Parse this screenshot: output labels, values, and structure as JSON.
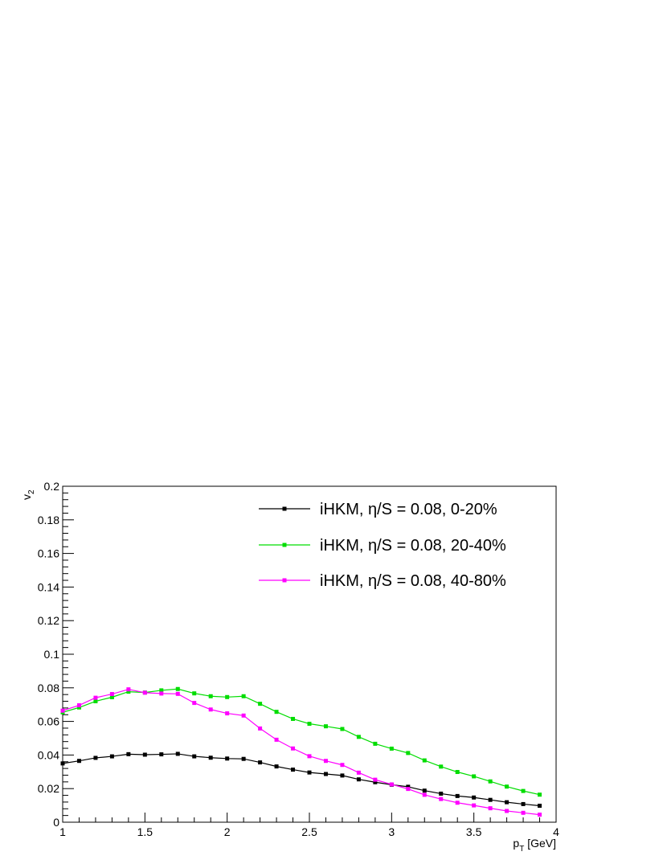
{
  "chart_data": {
    "type": "line",
    "xlabel": {
      "main": "p",
      "sub": "T",
      "suffix": " [GeV]"
    },
    "ylabel": {
      "main": "v",
      "sub": "2"
    },
    "xlim": [
      1,
      4
    ],
    "ylim": [
      0,
      0.2
    ],
    "x_ticks": [
      "1",
      "1.5",
      "2",
      "2.5",
      "3",
      "3.5",
      "4"
    ],
    "y_ticks": [
      "0",
      "0.02",
      "0.04",
      "0.06",
      "0.08",
      "0.1",
      "0.12",
      "0.14",
      "0.16",
      "0.18",
      "0.2"
    ],
    "grid": false,
    "legend_position": "top-right",
    "x": [
      1.0,
      1.1,
      1.2,
      1.3,
      1.4,
      1.5,
      1.6,
      1.7,
      1.8,
      1.9,
      2.0,
      2.1,
      2.2,
      2.3,
      2.4,
      2.5,
      2.6,
      2.7,
      2.8,
      2.9,
      3.0,
      3.1,
      3.2,
      3.3,
      3.4,
      3.5,
      3.6,
      3.7,
      3.8,
      3.9
    ],
    "series": [
      {
        "name": "iHKM, η/S = 0.08, 0-20%",
        "color": "#000000",
        "values": [
          0.035,
          0.0365,
          0.0383,
          0.0392,
          0.0405,
          0.0402,
          0.0404,
          0.0407,
          0.0392,
          0.0384,
          0.0379,
          0.0377,
          0.0356,
          0.0332,
          0.0313,
          0.0296,
          0.0287,
          0.0278,
          0.0255,
          0.0238,
          0.0223,
          0.0211,
          0.0188,
          0.017,
          0.0156,
          0.0147,
          0.0133,
          0.0119,
          0.0108,
          0.0098
        ]
      },
      {
        "name": "iHKM, η/S = 0.08, 20-40%",
        "color": "#00dd00",
        "values": [
          0.0654,
          0.0683,
          0.072,
          0.0744,
          0.0777,
          0.0772,
          0.0785,
          0.0793,
          0.0767,
          0.075,
          0.0745,
          0.075,
          0.0705,
          0.0657,
          0.0615,
          0.0586,
          0.0571,
          0.0555,
          0.0508,
          0.0467,
          0.0438,
          0.0412,
          0.0368,
          0.0331,
          0.0299,
          0.0273,
          0.0243,
          0.0212,
          0.0186,
          0.0164
        ]
      },
      {
        "name": "iHKM, η/S = 0.08, 40-80%",
        "color": "#ff00ff",
        "values": [
          0.0664,
          0.0696,
          0.0741,
          0.0763,
          0.0791,
          0.0771,
          0.0766,
          0.0764,
          0.071,
          0.0671,
          0.0648,
          0.0635,
          0.0558,
          0.0491,
          0.0439,
          0.0393,
          0.0365,
          0.0341,
          0.0295,
          0.0253,
          0.0225,
          0.0198,
          0.0163,
          0.0138,
          0.0116,
          0.01,
          0.0083,
          0.0067,
          0.0056,
          0.0045
        ]
      }
    ]
  }
}
